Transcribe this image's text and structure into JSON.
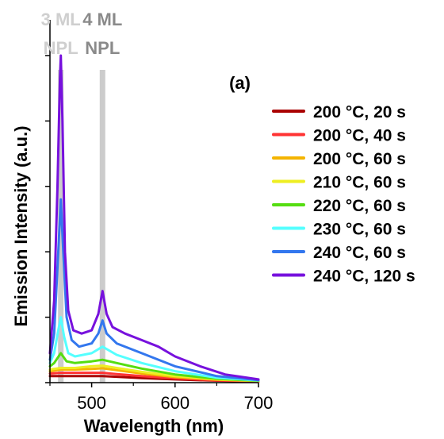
{
  "chart_data": {
    "type": "line",
    "xlabel": "Wavelength (nm)",
    "ylabel": "Emission Intensity (a.u.)",
    "xlim": [
      450,
      700
    ],
    "xticks": [
      500,
      600,
      700
    ],
    "ylim": [
      0,
      1
    ],
    "panel_label": "(a)",
    "bands": [
      {
        "name_line1": "3 ML",
        "name_line2": "NPL",
        "x": 463,
        "color": "#cfcfcf"
      },
      {
        "name_line1": "4 ML",
        "name_line2": "NPL",
        "x": 513,
        "color": "#8a8a8a"
      }
    ],
    "legend_position": "right",
    "series": [
      {
        "name": "200 °C, 20 s",
        "color": "#aa0000",
        "x": [
          450,
          463,
          480,
          500,
          513,
          530,
          560,
          600,
          650,
          700
        ],
        "y": [
          0.02,
          0.02,
          0.02,
          0.02,
          0.02,
          0.018,
          0.014,
          0.01,
          0.006,
          0.003
        ]
      },
      {
        "name": "200 °C, 40 s",
        "color": "#ff3333",
        "x": [
          450,
          463,
          480,
          500,
          513,
          530,
          560,
          600,
          650,
          700
        ],
        "y": [
          0.028,
          0.03,
          0.03,
          0.03,
          0.03,
          0.026,
          0.02,
          0.013,
          0.007,
          0.004
        ]
      },
      {
        "name": "200 °C, 60 s",
        "color": "#f4b400",
        "x": [
          450,
          463,
          480,
          500,
          513,
          530,
          560,
          600,
          650,
          700
        ],
        "y": [
          0.035,
          0.04,
          0.04,
          0.042,
          0.044,
          0.038,
          0.028,
          0.017,
          0.009,
          0.005
        ]
      },
      {
        "name": "210 °C, 60 s",
        "color": "#eeee22",
        "x": [
          450,
          463,
          480,
          500,
          513,
          530,
          560,
          600,
          650,
          700
        ],
        "y": [
          0.04,
          0.045,
          0.045,
          0.05,
          0.052,
          0.045,
          0.033,
          0.02,
          0.01,
          0.005
        ]
      },
      {
        "name": "220 °C, 60 s",
        "color": "#55dd11",
        "x": [
          450,
          455,
          463,
          470,
          480,
          500,
          513,
          530,
          560,
          600,
          650,
          700
        ],
        "y": [
          0.05,
          0.06,
          0.09,
          0.065,
          0.06,
          0.065,
          0.07,
          0.06,
          0.043,
          0.025,
          0.012,
          0.006
        ]
      },
      {
        "name": "230 °C, 60 s",
        "color": "#55ffff",
        "x": [
          450,
          455,
          460,
          463,
          467,
          472,
          480,
          500,
          513,
          530,
          560,
          600,
          650,
          700
        ],
        "y": [
          0.06,
          0.09,
          0.16,
          0.2,
          0.14,
          0.09,
          0.08,
          0.09,
          0.11,
          0.085,
          0.06,
          0.035,
          0.015,
          0.007
        ]
      },
      {
        "name": "240 °C, 60 s",
        "color": "#3377ee",
        "x": [
          450,
          455,
          460,
          463,
          466,
          470,
          476,
          485,
          500,
          508,
          513,
          518,
          530,
          560,
          600,
          650,
          700
        ],
        "y": [
          0.07,
          0.15,
          0.4,
          0.56,
          0.4,
          0.2,
          0.13,
          0.11,
          0.12,
          0.15,
          0.19,
          0.15,
          0.12,
          0.09,
          0.05,
          0.02,
          0.008
        ]
      },
      {
        "name": "240 °C, 120 s",
        "color": "#7711dd",
        "x": [
          450,
          455,
          459,
          462,
          463,
          465,
          468,
          472,
          478,
          488,
          500,
          508,
          513,
          518,
          525,
          540,
          560,
          580,
          600,
          630,
          660,
          700
        ],
        "y": [
          0.09,
          0.25,
          0.6,
          0.93,
          1.0,
          0.8,
          0.4,
          0.22,
          0.16,
          0.15,
          0.16,
          0.21,
          0.28,
          0.21,
          0.17,
          0.15,
          0.13,
          0.11,
          0.08,
          0.05,
          0.025,
          0.01
        ]
      }
    ]
  }
}
